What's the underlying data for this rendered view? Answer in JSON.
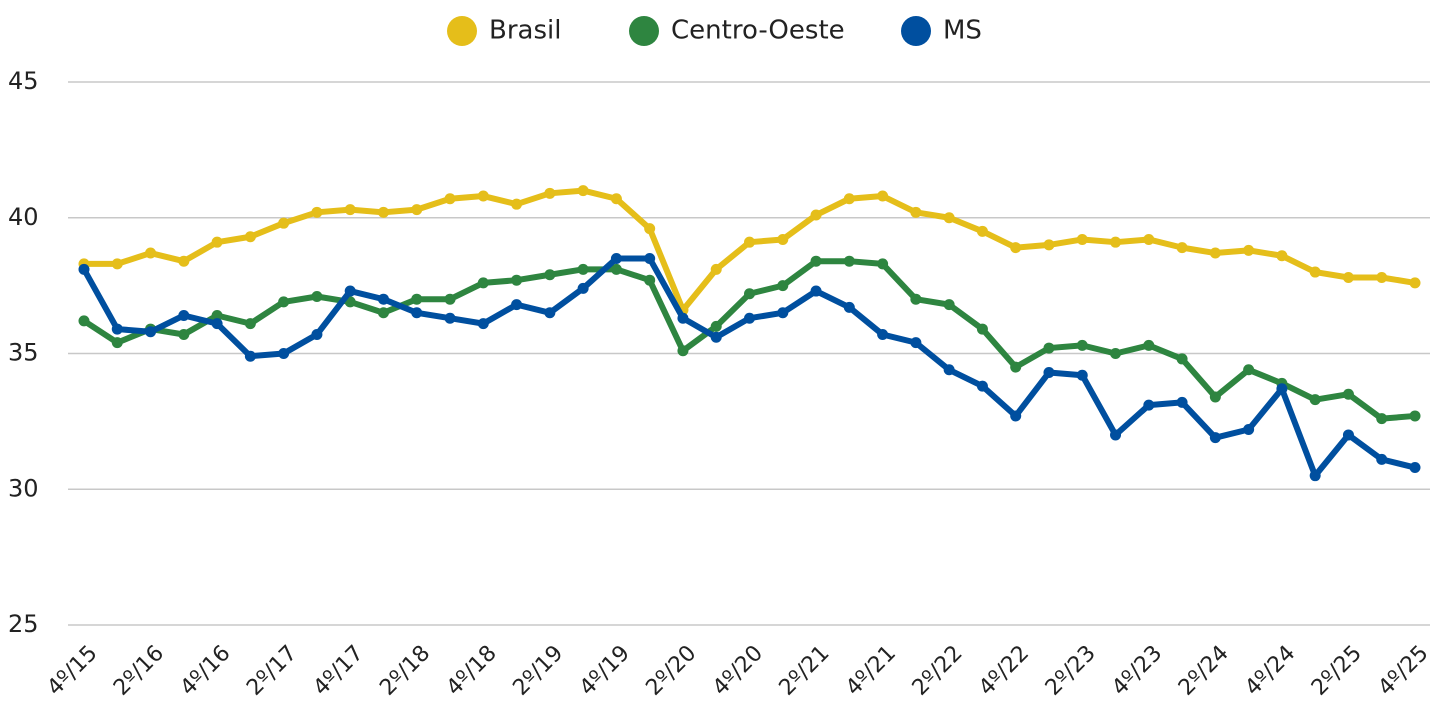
{
  "chart_data": {
    "type": "line",
    "categories": [
      "4º/15",
      null,
      "2º/16",
      null,
      "4º/16",
      null,
      "2º/17",
      null,
      "4º/17",
      null,
      "2º/18",
      null,
      "4º/18",
      null,
      "2º/19",
      null,
      "4º/19",
      null,
      "2º/20",
      null,
      "4º/20",
      null,
      "2º/21",
      null,
      "4º/21",
      null,
      "2º/22",
      null,
      "4º/22",
      null,
      "2º/23",
      null,
      "4º/23",
      null,
      "2º/24",
      null,
      "4º/24",
      null,
      "2º/25",
      null,
      "4º/25"
    ],
    "series": [
      {
        "name": "Brasil",
        "color": "#e5be1a",
        "values": [
          38.3,
          38.3,
          38.7,
          38.4,
          39.1,
          39.3,
          39.8,
          40.2,
          40.3,
          40.2,
          40.3,
          40.7,
          40.8,
          40.5,
          40.9,
          41.0,
          40.7,
          39.6,
          36.6,
          38.1,
          39.1,
          39.2,
          40.1,
          40.7,
          40.8,
          40.2,
          40.0,
          39.5,
          38.9,
          39.0,
          39.2,
          39.1,
          39.2,
          38.9,
          38.7,
          38.8,
          38.6,
          38.0,
          37.8,
          37.8,
          37.6
        ]
      },
      {
        "name": "Centro-Oeste",
        "color": "#2e8540",
        "values": [
          36.2,
          35.4,
          35.9,
          35.7,
          36.4,
          36.1,
          36.9,
          37.1,
          36.9,
          36.5,
          37.0,
          37.0,
          37.6,
          37.7,
          37.9,
          38.1,
          38.1,
          37.7,
          35.1,
          36.0,
          37.2,
          37.5,
          38.4,
          38.4,
          38.3,
          37.0,
          36.8,
          35.9,
          34.5,
          35.2,
          35.3,
          35.0,
          35.3,
          34.8,
          33.4,
          34.4,
          33.9,
          33.3,
          33.5,
          32.6,
          32.7
        ]
      },
      {
        "name": "MS",
        "color": "#004f9f",
        "values": [
          38.1,
          35.9,
          35.8,
          36.4,
          36.1,
          34.9,
          35.0,
          35.7,
          37.3,
          37.0,
          36.5,
          36.3,
          36.1,
          36.8,
          36.5,
          37.4,
          38.5,
          38.5,
          36.3,
          35.6,
          36.3,
          36.5,
          37.3,
          36.7,
          35.7,
          35.4,
          34.4,
          33.8,
          32.7,
          34.3,
          34.2,
          32.0,
          33.1,
          33.2,
          31.9,
          32.2,
          33.7,
          30.5,
          32.0,
          31.1,
          30.8
        ]
      }
    ],
    "ylim": [
      25,
      45
    ],
    "yticks": [
      25,
      30,
      35,
      40,
      45
    ],
    "grid": true,
    "legend": "top"
  }
}
